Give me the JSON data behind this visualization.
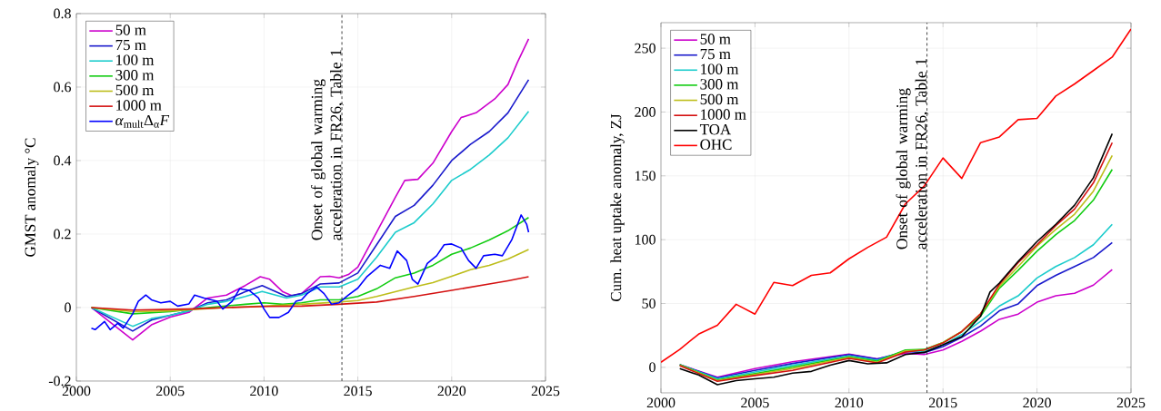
{
  "chart_data": [
    {
      "type": "line",
      "ylabel": "GMST anomaly °C",
      "xlim": [
        2000,
        2025
      ],
      "ylim": [
        -0.2,
        0.8
      ],
      "xticks": [
        2000,
        2005,
        2010,
        2015,
        2020,
        2025
      ],
      "yticks": [
        -0.2,
        0,
        0.2,
        0.4,
        0.6,
        0.8
      ],
      "grid": true,
      "legend": "top left",
      "line_style": "solid",
      "ref_lines": [
        {
          "axis": "x",
          "value": 2014.15,
          "label": "Onset of global warming acceleration in FR26, Table 1",
          "color": "#404040",
          "line_style": "dashed"
        }
      ],
      "series": [
        {
          "name": "50 m",
          "color": "#cc00cc",
          "x": [
            2000.8,
            2003,
            2004,
            2005,
            2006,
            2007,
            2008,
            2009,
            2009.8,
            2010.3,
            2011,
            2011.5,
            2012,
            2012.5,
            2013,
            2013.5,
            2014,
            2014.5,
            2015,
            2016,
            2017,
            2017.5,
            2018.2,
            2019,
            2020,
            2020.5,
            2021.3,
            2022.3,
            2023,
            2023.5,
            2024.1
          ],
          "values": [
            0,
            -0.088,
            -0.047,
            -0.026,
            -0.013,
            0.026,
            0.034,
            0.06,
            0.084,
            0.077,
            0.043,
            0.032,
            0.038,
            0.06,
            0.084,
            0.085,
            0.081,
            0.09,
            0.11,
            0.205,
            0.3,
            0.346,
            0.349,
            0.393,
            0.479,
            0.517,
            0.53,
            0.568,
            0.607,
            0.667,
            0.731
          ]
        },
        {
          "name": "75 m",
          "color": "#1a1acc",
          "x": [
            2000.8,
            2003,
            2004,
            2005,
            2006,
            2007,
            2008,
            2009,
            2009.9,
            2011.2,
            2012,
            2013,
            2014,
            2015,
            2016,
            2017,
            2018,
            2019,
            2020,
            2021,
            2022,
            2023,
            2024.1
          ],
          "values": [
            0,
            -0.064,
            -0.034,
            -0.021,
            -0.009,
            0.013,
            0.021,
            0.043,
            0.06,
            0.03,
            0.038,
            0.064,
            0.067,
            0.094,
            0.171,
            0.248,
            0.278,
            0.333,
            0.4,
            0.444,
            0.479,
            0.53,
            0.62
          ]
        },
        {
          "name": "100 m",
          "color": "#1ccccc",
          "x": [
            2000.8,
            2003,
            2004,
            2005,
            2006,
            2007,
            2008,
            2009,
            2009.9,
            2011.2,
            2012,
            2013,
            2014,
            2015,
            2016,
            2017,
            2018,
            2019,
            2020,
            2021,
            2022,
            2023,
            2024.1
          ],
          "values": [
            0,
            -0.051,
            -0.03,
            -0.021,
            -0.009,
            0.009,
            0.017,
            0.03,
            0.044,
            0.026,
            0.034,
            0.056,
            0.056,
            0.077,
            0.137,
            0.205,
            0.231,
            0.282,
            0.346,
            0.376,
            0.415,
            0.462,
            0.534
          ]
        },
        {
          "name": "300 m",
          "color": "#11cc11",
          "x": [
            2000.8,
            2003,
            2005,
            2007,
            2009,
            2010,
            2011,
            2012,
            2013,
            2014,
            2015,
            2016,
            2017,
            2018,
            2019,
            2020,
            2021,
            2022,
            2023,
            2024.1
          ],
          "values": [
            0,
            -0.017,
            -0.011,
            0,
            0.009,
            0.013,
            0.009,
            0.013,
            0.021,
            0.021,
            0.03,
            0.051,
            0.081,
            0.094,
            0.115,
            0.145,
            0.162,
            0.184,
            0.209,
            0.245
          ]
        },
        {
          "name": "500 m",
          "color": "#bdbd1a",
          "x": [
            2000.8,
            2003,
            2005,
            2008,
            2010,
            2012,
            2014,
            2015,
            2016,
            2017,
            2018,
            2019,
            2020,
            2021,
            2022,
            2023,
            2024.1
          ],
          "values": [
            0,
            -0.011,
            -0.009,
            0,
            0.004,
            0.009,
            0.015,
            0.019,
            0.03,
            0.043,
            0.056,
            0.068,
            0.085,
            0.103,
            0.115,
            0.132,
            0.158
          ]
        },
        {
          "name": "1000 m",
          "color": "#d41111",
          "x": [
            2000.8,
            2003,
            2006,
            2008,
            2010,
            2012,
            2014,
            2016,
            2018,
            2020,
            2022,
            2023,
            2024.1
          ],
          "values": [
            0,
            -0.007,
            -0.004,
            0,
            0.003,
            0.004,
            0.009,
            0.015,
            0.03,
            0.047,
            0.064,
            0.073,
            0.084
          ]
        },
        {
          "name": "*α*$_{mult}$Δ$_{α}$*F*",
          "color": "#0000ff",
          "x": [
            2000.8,
            2001,
            2001.5,
            2001.8,
            2002.2,
            2002.5,
            2003,
            2003.3,
            2003.7,
            2004,
            2004.5,
            2005,
            2005.4,
            2006,
            2006.3,
            2006.8,
            2007.5,
            2007.8,
            2008.3,
            2008.7,
            2009.2,
            2009.7,
            2010,
            2010.3,
            2010.8,
            2011.3,
            2011.7,
            2012,
            2012.3,
            2012.8,
            2013.2,
            2013.6,
            2014,
            2014.5,
            2015,
            2015.5,
            2016.2,
            2016.7,
            2017.1,
            2017.6,
            2017.9,
            2018.2,
            2018.7,
            2019.2,
            2019.6,
            2020,
            2020.5,
            2020.9,
            2021.3,
            2021.7,
            2022.3,
            2022.7,
            2023.2,
            2023.7,
            2024,
            2024.1
          ],
          "values": [
            -0.056,
            -0.06,
            -0.038,
            -0.06,
            -0.043,
            -0.056,
            -0.017,
            0.017,
            0.034,
            0.021,
            0.013,
            0.017,
            0.004,
            0.01,
            0.034,
            0.026,
            0.017,
            -0.004,
            0.017,
            0.051,
            0.047,
            0.026,
            -0.004,
            -0.027,
            -0.027,
            -0.013,
            0.017,
            0.021,
            0.038,
            0.056,
            0.038,
            0.009,
            0.013,
            0.034,
            0.053,
            0.085,
            0.115,
            0.107,
            0.154,
            0.128,
            0.077,
            0.064,
            0.12,
            0.141,
            0.171,
            0.173,
            0.162,
            0.128,
            0.107,
            0.141,
            0.145,
            0.141,
            0.184,
            0.252,
            0.226,
            0.205
          ]
        }
      ]
    },
    {
      "type": "line",
      "ylabel": "Cum. heat uptake anomaly, ZJ",
      "xlim": [
        2000,
        2025
      ],
      "ylim": [
        -20,
        270
      ],
      "xticks": [
        2000,
        2005,
        2010,
        2015,
        2020,
        2025
      ],
      "yticks": [
        0,
        50,
        100,
        150,
        200,
        250
      ],
      "grid": true,
      "legend": "top left",
      "line_style": "solid",
      "ref_lines": [
        {
          "axis": "x",
          "value": 2014.15,
          "label": "Onset of global warming acceleration in FR26, Table 1",
          "color": "#404040",
          "line_style": "dashed"
        }
      ],
      "series": [
        {
          "name": "50 m",
          "color": "#cc00cc",
          "x": [
            2001,
            2003,
            2005,
            2007,
            2010,
            2011.5,
            2013,
            2014,
            2015,
            2016,
            2017,
            2018,
            2019,
            2020,
            2021,
            2022,
            2023,
            2024
          ],
          "values": [
            2,
            -7.7,
            -1,
            4.3,
            10.4,
            6.7,
            11,
            10,
            13.6,
            20.3,
            28.3,
            37.6,
            41.7,
            51,
            56,
            58,
            64.4,
            76.6
          ]
        },
        {
          "name": "75 m",
          "color": "#1a1acc",
          "x": [
            2001,
            2003,
            2005,
            2007,
            2010,
            2011.5,
            2013,
            2014,
            2015,
            2016,
            2017,
            2018,
            2019,
            2020,
            2021,
            2022,
            2023,
            2024
          ],
          "values": [
            2,
            -8.3,
            -2.4,
            3,
            10,
            6.4,
            12.3,
            11.5,
            16.3,
            23.5,
            32.3,
            44.3,
            49.7,
            64,
            72,
            79,
            86,
            97.7
          ]
        },
        {
          "name": "100 m",
          "color": "#1ccccc",
          "x": [
            2001,
            2003,
            2005,
            2007,
            2010,
            2011.5,
            2013,
            2014,
            2015,
            2016,
            2017,
            2018,
            2019,
            2020,
            2021,
            2022,
            2023,
            2024
          ],
          "values": [
            2,
            -9,
            -3.7,
            1.6,
            9,
            5.6,
            12.8,
            12.3,
            17.6,
            25.6,
            36,
            48,
            56,
            70,
            79,
            86,
            96,
            112
          ]
        },
        {
          "name": "300 m",
          "color": "#11cc11",
          "x": [
            2001,
            2003,
            2005,
            2007,
            2010,
            2011.5,
            2013,
            2014,
            2015,
            2016,
            2017,
            2018,
            2019,
            2020,
            2021,
            2022,
            2023,
            2024
          ],
          "values": [
            2,
            -10,
            -5,
            0.3,
            8.3,
            4.8,
            13.6,
            14,
            19.5,
            28,
            40,
            62,
            76,
            91,
            104,
            115,
            131,
            155
          ]
        },
        {
          "name": "500 m",
          "color": "#bdbd1a",
          "x": [
            2001,
            2003,
            2005,
            2007,
            2010,
            2011.5,
            2013,
            2014,
            2015,
            2016,
            2017,
            2018,
            2019,
            2020,
            2021,
            2022,
            2023,
            2024
          ],
          "values": [
            1.6,
            -10.4,
            -5.6,
            -1,
            7.7,
            4,
            12.8,
            13.6,
            19.5,
            28,
            42,
            63.5,
            79,
            95,
            108,
            120,
            138,
            166
          ]
        },
        {
          "name": "1000 m",
          "color": "#d41111",
          "x": [
            2001,
            2003,
            2005,
            2007,
            2010,
            2011.5,
            2013,
            2014,
            2015,
            2016,
            2017,
            2018,
            2019,
            2020,
            2021,
            2022,
            2023,
            2024
          ],
          "values": [
            1.3,
            -11,
            -6.4,
            -2.4,
            7,
            3.5,
            12,
            13.6,
            19,
            28,
            42,
            65,
            82,
            96,
            111,
            124,
            144.5,
            176
          ]
        },
        {
          "name": "TOA",
          "color": "#000000",
          "x": [
            2001,
            2002,
            2003,
            2004,
            2005,
            2006,
            2007,
            2008,
            2009,
            2010,
            2011,
            2012,
            2013,
            2014,
            2015,
            2016,
            2017,
            2017.5,
            2018,
            2019,
            2020,
            2021,
            2022,
            2023,
            2024
          ],
          "values": [
            -1,
            -6,
            -13.6,
            -10.4,
            -9,
            -7.7,
            -4.5,
            -3.2,
            1.6,
            5.3,
            2.7,
            3.5,
            10,
            11.7,
            17.6,
            24,
            40,
            59,
            66,
            83,
            98.5,
            112,
            127,
            148.5,
            183
          ]
        },
        {
          "name": "OHC",
          "color": "#ff0000",
          "x": [
            2000,
            2001,
            2002,
            2003,
            2004,
            2005,
            2006,
            2007,
            2008,
            2009,
            2010,
            2011,
            2012,
            2013,
            2014,
            2015,
            2016,
            2017,
            2018,
            2019,
            2020,
            2021,
            2022,
            2023,
            2024,
            2025
          ],
          "values": [
            4,
            14,
            26,
            33,
            49.4,
            41.7,
            66.5,
            64,
            72,
            74,
            85,
            94,
            102,
            128,
            142,
            164,
            148,
            176,
            180.5,
            194,
            195,
            212.5,
            222,
            232.5,
            243,
            265
          ]
        }
      ]
    }
  ]
}
